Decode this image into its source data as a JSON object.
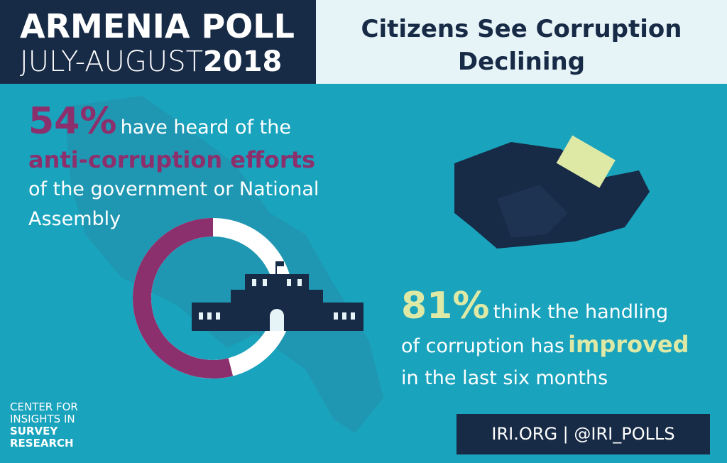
{
  "header": {
    "title": "ARMENIA POLL",
    "period": "JULY-AUGUST",
    "year": "2018"
  },
  "headline": [
    "Citizens See Corruption",
    "Declining"
  ],
  "stat1": {
    "value": 54,
    "label": "54%",
    "text": [
      "have heard of the",
      "anti-corruption efforts",
      "of the government or National",
      "Assembly"
    ]
  },
  "stat2": {
    "value": 81,
    "label": "81%",
    "text": [
      "think the handling",
      "of corruption has",
      "improved",
      "in the last six months"
    ]
  },
  "logo": [
    "CENTER FOR",
    "INSIGHTS IN",
    "SURVEY",
    "RESEARCH"
  ],
  "footer": "IRI.ORG | @IRI_POLLS"
}
